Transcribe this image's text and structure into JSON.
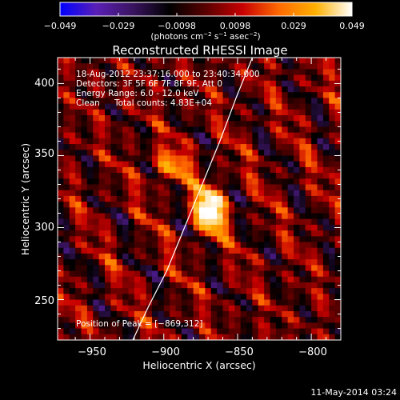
{
  "colorbar": {
    "ticks": [
      "−0.049",
      "−0.029",
      "−0.0098",
      "0.0098",
      "0.029",
      "0.049"
    ],
    "label_main": "(photons cm",
    "label_sup1": "−2",
    "label_mid": " s",
    "label_sup2": "−1",
    "label_tail": " asec",
    "label_sup3": "−2",
    "label_end": ")",
    "stops": [
      "#0000ff",
      "#5a1fb5",
      "#3a1460",
      "#000000",
      "#5a0000",
      "#c80000",
      "#ff6a00",
      "#ffb000",
      "#ffffff"
    ]
  },
  "chart_data": {
    "type": "heatmap",
    "title": "Reconstructed RHESSI Image",
    "xlabel": "Heliocentric X (arcsec)",
    "ylabel": "Heliocentric Y (arcsec)",
    "xlim": [
      -972,
      -780
    ],
    "ylim": [
      222,
      418
    ],
    "xticks": [
      -950,
      -900,
      -850,
      -800
    ],
    "xtick_labels": [
      "−950",
      "−900",
      "−850",
      "−800"
    ],
    "yticks": [
      250,
      300,
      350,
      400
    ],
    "ytick_labels": [
      "250",
      "300",
      "350",
      "400"
    ],
    "color_range": [
      -0.049,
      0.049
    ],
    "peak": [
      -869,
      312
    ],
    "annotations": [
      "18-Aug-2012 23:37:16.000 to 23:40:34.000",
      "Detectors: 3F 5F 6F 7F 8F 9F, Att 0",
      "Energy Range: 6.0 - 12.0 keV",
      "Clean",
      "Total counts: 4.83E+04"
    ],
    "peak_label": "Position of Peak = [−869,312]",
    "limb_points": [
      [
        -840,
        418
      ],
      [
        -851,
        390
      ],
      [
        -862,
        360
      ],
      [
        -874,
        330
      ],
      [
        -886,
        300
      ],
      [
        -898,
        270
      ],
      [
        -910,
        246
      ],
      [
        -921,
        222
      ]
    ]
  },
  "footer": {
    "timestamp": "11-May-2014 03:24"
  }
}
